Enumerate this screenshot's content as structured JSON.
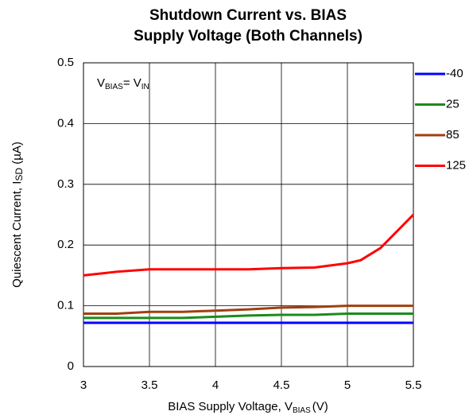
{
  "chart_data": {
    "type": "line",
    "title": [
      "Shutdown Current vs. BIAS",
      "Supply Voltage (Both Channels)"
    ],
    "xlabel": {
      "text": "BIAS Supply Voltage, V",
      "sub": "BIAS",
      "after": "(V)"
    },
    "ylabel": {
      "text": "Quiescent Current, I",
      "sub": "SD",
      "after": " (µA)"
    },
    "annotation": {
      "v1": "V",
      "s1": "BIAS",
      "v2": "= V",
      "s2": "IN"
    },
    "x": [
      3,
      3.25,
      3.5,
      3.75,
      4,
      4.25,
      4.5,
      4.75,
      5,
      5.1,
      5.25,
      5.5
    ],
    "series": [
      {
        "name": "-40",
        "color": "#0000ff",
        "values": [
          0.072,
          0.072,
          0.072,
          0.072,
          0.072,
          0.072,
          0.072,
          0.072,
          0.072,
          0.072,
          0.072,
          0.072
        ]
      },
      {
        "name": "25",
        "color": "#1a8c1a",
        "values": [
          0.08,
          0.08,
          0.08,
          0.08,
          0.082,
          0.084,
          0.085,
          0.085,
          0.087,
          0.087,
          0.087,
          0.087
        ]
      },
      {
        "name": "85",
        "color": "#a0400f",
        "values": [
          0.087,
          0.087,
          0.09,
          0.09,
          0.092,
          0.094,
          0.097,
          0.098,
          0.1,
          0.1,
          0.1,
          0.1
        ]
      },
      {
        "name": "125",
        "color": "#ff0000",
        "values": [
          0.15,
          0.156,
          0.16,
          0.16,
          0.16,
          0.16,
          0.162,
          0.163,
          0.17,
          0.175,
          0.195,
          0.25
        ]
      }
    ],
    "xlim": [
      3,
      5.5
    ],
    "xticks": [
      3,
      3.5,
      4,
      4.5,
      5,
      5.5
    ],
    "ylim": [
      0,
      0.5
    ],
    "yticks": [
      0,
      0.1,
      0.2,
      0.3,
      0.4,
      0.5
    ],
    "grid": true,
    "legend": "right"
  }
}
